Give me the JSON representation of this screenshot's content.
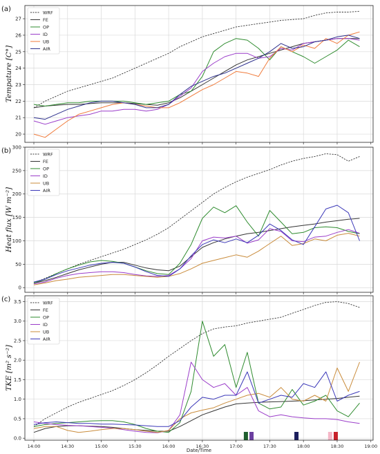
{
  "figure": {
    "xlabel": "Date/Time",
    "x_ticks": [
      "14:00",
      "14:30",
      "15:00",
      "15:30",
      "16:00",
      "16:30",
      "17:00",
      "17:30",
      "18:00",
      "18:30",
      "19:00"
    ]
  },
  "chart_data": [
    {
      "type": "line",
      "panel_label": "(a)",
      "ylabel": "Tempature [C°]",
      "xlabel": "",
      "ylim": [
        19.5,
        27.8
      ],
      "yticks": [
        20,
        21,
        22,
        23,
        24,
        25,
        26,
        27
      ],
      "grid": true,
      "legend_position": "top-left",
      "x": [
        "14:00",
        "14:10",
        "14:20",
        "14:30",
        "14:40",
        "14:50",
        "15:00",
        "15:10",
        "15:20",
        "15:30",
        "15:40",
        "15:50",
        "16:00",
        "16:10",
        "16:20",
        "16:30",
        "16:40",
        "16:50",
        "17:00",
        "17:10",
        "17:20",
        "17:30",
        "17:40",
        "17:50",
        "18:00",
        "18:10",
        "18:20",
        "18:30",
        "18:40",
        "18:50"
      ],
      "series": [
        {
          "name": "WRF",
          "color": "#333333",
          "dash": true,
          "values": [
            21.6,
            22.0,
            22.3,
            22.6,
            22.8,
            23.0,
            23.2,
            23.4,
            23.7,
            24.0,
            24.3,
            24.6,
            24.9,
            25.3,
            25.6,
            25.9,
            26.1,
            26.3,
            26.5,
            26.6,
            26.7,
            26.8,
            26.9,
            26.95,
            27.0,
            27.2,
            27.35,
            27.4,
            27.4,
            27.45
          ]
        },
        {
          "name": "FE",
          "color": "#333333",
          "values": [
            21.6,
            21.7,
            21.75,
            21.8,
            21.8,
            21.85,
            21.9,
            21.9,
            21.9,
            21.85,
            21.8,
            21.75,
            21.9,
            22.2,
            22.6,
            23.0,
            23.4,
            23.8,
            24.2,
            24.5,
            24.7,
            24.9,
            25.1,
            25.3,
            25.5,
            25.6,
            25.7,
            25.8,
            25.8,
            25.8
          ]
        },
        {
          "name": "OP",
          "color": "#2e8b2e",
          "values": [
            21.8,
            21.7,
            21.8,
            21.9,
            21.9,
            22.0,
            22.0,
            22.0,
            22.0,
            21.9,
            21.8,
            21.9,
            22.0,
            22.4,
            22.6,
            23.5,
            25.0,
            25.5,
            25.8,
            25.7,
            25.2,
            24.5,
            25.3,
            25.0,
            24.7,
            24.3,
            24.7,
            25.1,
            25.7,
            25.3
          ]
        },
        {
          "name": "ID",
          "color": "#9a3cc9",
          "values": [
            20.8,
            20.6,
            20.8,
            21.0,
            21.1,
            21.2,
            21.4,
            21.4,
            21.5,
            21.5,
            21.4,
            21.5,
            21.8,
            22.3,
            22.8,
            23.8,
            24.3,
            24.7,
            24.9,
            24.9,
            24.6,
            24.7,
            25.2,
            25.1,
            25.5,
            25.6,
            25.7,
            25.8,
            25.8,
            25.7
          ]
        },
        {
          "name": "UB",
          "color": "#f07a3a",
          "values": [
            20.0,
            19.8,
            20.3,
            20.8,
            21.2,
            21.4,
            21.6,
            21.8,
            21.9,
            21.8,
            21.7,
            21.6,
            21.6,
            21.9,
            22.3,
            22.7,
            23.0,
            23.4,
            23.8,
            23.7,
            23.5,
            24.6,
            25.3,
            25.0,
            25.4,
            25.2,
            25.8,
            25.5,
            26.0,
            26.2
          ]
        },
        {
          "name": "AIR",
          "color": "#2c2f8c",
          "values": [
            21.0,
            20.9,
            21.2,
            21.5,
            21.7,
            21.9,
            22.0,
            22.0,
            21.9,
            21.8,
            21.6,
            21.6,
            21.8,
            22.4,
            22.9,
            23.2,
            23.5,
            23.7,
            24.0,
            24.3,
            24.6,
            25.0,
            25.5,
            25.2,
            25.3,
            25.6,
            25.7,
            25.9,
            26.0,
            25.8
          ]
        }
      ]
    },
    {
      "type": "line",
      "panel_label": "(b)",
      "ylabel": "Heat flux [W m⁻²]",
      "xlabel": "",
      "ylim": [
        -10,
        300
      ],
      "yticks": [
        0,
        50,
        100,
        150,
        200,
        250,
        300
      ],
      "grid": true,
      "legend_position": "top-left",
      "x": [
        "14:00",
        "14:10",
        "14:20",
        "14:30",
        "14:40",
        "14:50",
        "15:00",
        "15:10",
        "15:20",
        "15:30",
        "15:40",
        "15:50",
        "16:00",
        "16:10",
        "16:20",
        "16:30",
        "16:40",
        "16:50",
        "17:00",
        "17:10",
        "17:20",
        "17:30",
        "17:40",
        "17:50",
        "18:00",
        "18:10",
        "18:20",
        "18:30",
        "18:40",
        "18:50"
      ],
      "series": [
        {
          "name": "WRF",
          "color": "#333333",
          "dash": true,
          "values": [
            10,
            20,
            30,
            40,
            50,
            58,
            66,
            74,
            82,
            92,
            102,
            114,
            128,
            146,
            164,
            182,
            200,
            214,
            226,
            236,
            244,
            252,
            262,
            270,
            276,
            280,
            286,
            284,
            270,
            280
          ]
        },
        {
          "name": "FE",
          "color": "#333333",
          "values": [
            10,
            15,
            22,
            30,
            38,
            44,
            50,
            54,
            54,
            48,
            42,
            38,
            36,
            46,
            66,
            86,
            96,
            104,
            110,
            115,
            118,
            122,
            126,
            130,
            133,
            136,
            140,
            143,
            146,
            148
          ]
        },
        {
          "name": "OP",
          "color": "#2e8b2e",
          "values": [
            10,
            18,
            30,
            40,
            48,
            55,
            58,
            56,
            52,
            44,
            36,
            30,
            28,
            52,
            92,
            148,
            172,
            160,
            175,
            140,
            110,
            165,
            140,
            115,
            118,
            128,
            130,
            128,
            120,
            115
          ]
        },
        {
          "name": "ID",
          "color": "#9a3cc9",
          "values": [
            8,
            12,
            20,
            26,
            30,
            32,
            34,
            34,
            32,
            28,
            25,
            24,
            26,
            40,
            62,
            100,
            108,
            106,
            110,
            95,
            102,
            126,
            120,
            100,
            98,
            108,
            110,
            118,
            124,
            116
          ]
        },
        {
          "name": "UB",
          "color": "#c98b3a",
          "values": [
            6,
            10,
            15,
            18,
            22,
            24,
            26,
            28,
            28,
            26,
            24,
            22,
            24,
            30,
            40,
            52,
            58,
            64,
            70,
            65,
            78,
            94,
            110,
            90,
            94,
            104,
            100,
            112,
            116,
            110
          ]
        },
        {
          "name": "AIR",
          "color": "#3a37b8",
          "values": [
            12,
            18,
            28,
            36,
            42,
            48,
            52,
            54,
            52,
            44,
            34,
            26,
            24,
            40,
            68,
            92,
            102,
            96,
            104,
            96,
            112,
            136,
            122,
            102,
            92,
            130,
            168,
            176,
            160,
            100
          ]
        }
      ]
    },
    {
      "type": "line",
      "panel_label": "(c)",
      "ylabel": "TKE [m² s⁻²]",
      "xlabel": "Date/Time",
      "ylim": [
        -0.05,
        3.65
      ],
      "yticks": [
        0.0,
        0.5,
        1.0,
        1.5,
        2.0,
        2.5,
        3.0,
        3.5
      ],
      "grid": true,
      "legend_position": "top-left",
      "x": [
        "14:00",
        "14:10",
        "14:20",
        "14:30",
        "14:40",
        "14:50",
        "15:00",
        "15:10",
        "15:20",
        "15:30",
        "15:40",
        "15:50",
        "16:00",
        "16:10",
        "16:20",
        "16:30",
        "16:40",
        "16:50",
        "17:00",
        "17:10",
        "17:20",
        "17:30",
        "17:40",
        "17:50",
        "18:00",
        "18:10",
        "18:20",
        "18:30",
        "18:40",
        "18:50"
      ],
      "series": [
        {
          "name": "WRF",
          "color": "#333333",
          "dash": true,
          "values": [
            0.3,
            0.5,
            0.65,
            0.8,
            0.92,
            1.02,
            1.12,
            1.22,
            1.35,
            1.5,
            1.68,
            1.88,
            2.1,
            2.3,
            2.5,
            2.68,
            2.8,
            2.85,
            2.88,
            2.95,
            3.0,
            3.05,
            3.1,
            3.2,
            3.3,
            3.4,
            3.48,
            3.5,
            3.45,
            3.35
          ]
        },
        {
          "name": "FE",
          "color": "#333333",
          "values": [
            0.15,
            0.25,
            0.3,
            0.32,
            0.32,
            0.31,
            0.3,
            0.28,
            0.25,
            0.22,
            0.2,
            0.18,
            0.18,
            0.3,
            0.45,
            0.6,
            0.7,
            0.8,
            0.88,
            0.9,
            0.92,
            0.93,
            0.94,
            0.95,
            0.96,
            0.98,
            1.0,
            1.02,
            1.05,
            1.08
          ]
        },
        {
          "name": "OP",
          "color": "#2e8b2e",
          "values": [
            0.3,
            0.35,
            0.38,
            0.4,
            0.42,
            0.44,
            0.45,
            0.45,
            0.42,
            0.35,
            0.25,
            0.18,
            0.15,
            0.4,
            1.2,
            3.0,
            2.1,
            2.4,
            1.3,
            2.2,
            0.9,
            0.75,
            0.8,
            1.25,
            0.85,
            0.95,
            1.1,
            0.7,
            0.55,
            0.9
          ]
        },
        {
          "name": "ID",
          "color": "#9a3cc9",
          "values": [
            0.42,
            0.38,
            0.35,
            0.33,
            0.32,
            0.3,
            0.28,
            0.26,
            0.22,
            0.18,
            0.15,
            0.14,
            0.2,
            0.6,
            1.95,
            1.5,
            1.3,
            1.4,
            1.1,
            1.3,
            0.7,
            0.55,
            0.6,
            0.55,
            0.52,
            0.5,
            0.5,
            0.48,
            0.42,
            0.38
          ]
        },
        {
          "name": "UB",
          "color": "#c98b3a",
          "values": [
            0.25,
            0.3,
            0.3,
            0.2,
            0.15,
            0.18,
            0.22,
            0.25,
            0.25,
            0.22,
            0.18,
            0.15,
            0.2,
            0.5,
            0.65,
            0.72,
            0.78,
            0.9,
            1.0,
            1.1,
            1.15,
            1.05,
            1.3,
            1.0,
            0.95,
            1.1,
            0.95,
            1.8,
            1.2,
            1.95
          ]
        },
        {
          "name": "AIR",
          "color": "#3a37b8",
          "values": [
            0.35,
            0.4,
            0.42,
            0.4,
            0.38,
            0.38,
            0.36,
            0.36,
            0.35,
            0.34,
            0.32,
            0.3,
            0.3,
            0.45,
            0.8,
            1.05,
            1.0,
            1.1,
            1.1,
            1.7,
            0.9,
            1.0,
            1.1,
            1.05,
            1.4,
            1.3,
            1.7,
            0.95,
            1.1,
            1.2
          ]
        }
      ],
      "bottom_markers": [
        {
          "x": "17:10",
          "color": "#1f5e2e"
        },
        {
          "x": "17:15",
          "color": "#6b3fa0"
        },
        {
          "x": "17:55",
          "color": "#1b1e5c"
        },
        {
          "x": "18:25",
          "color": "#f5b8c8"
        },
        {
          "x": "18:30",
          "color": "#c8202a"
        }
      ]
    }
  ]
}
